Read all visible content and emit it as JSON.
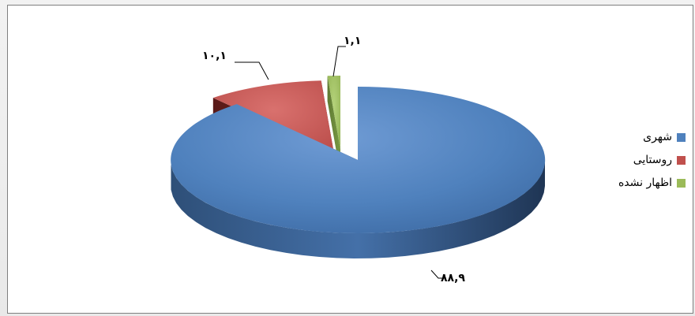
{
  "chart_data": {
    "type": "pie",
    "style": "3d-exploded",
    "categories": [
      "شهری",
      "روستایی",
      "اظهار نشده"
    ],
    "values": [
      88.9,
      10.1,
      1.1
    ],
    "data_labels": [
      "۸۸,۹",
      "۱۰,۱",
      "۱,۱"
    ],
    "colors": [
      "#4f81bd",
      "#c0504d",
      "#9bbb59"
    ],
    "legend_position": "right"
  }
}
